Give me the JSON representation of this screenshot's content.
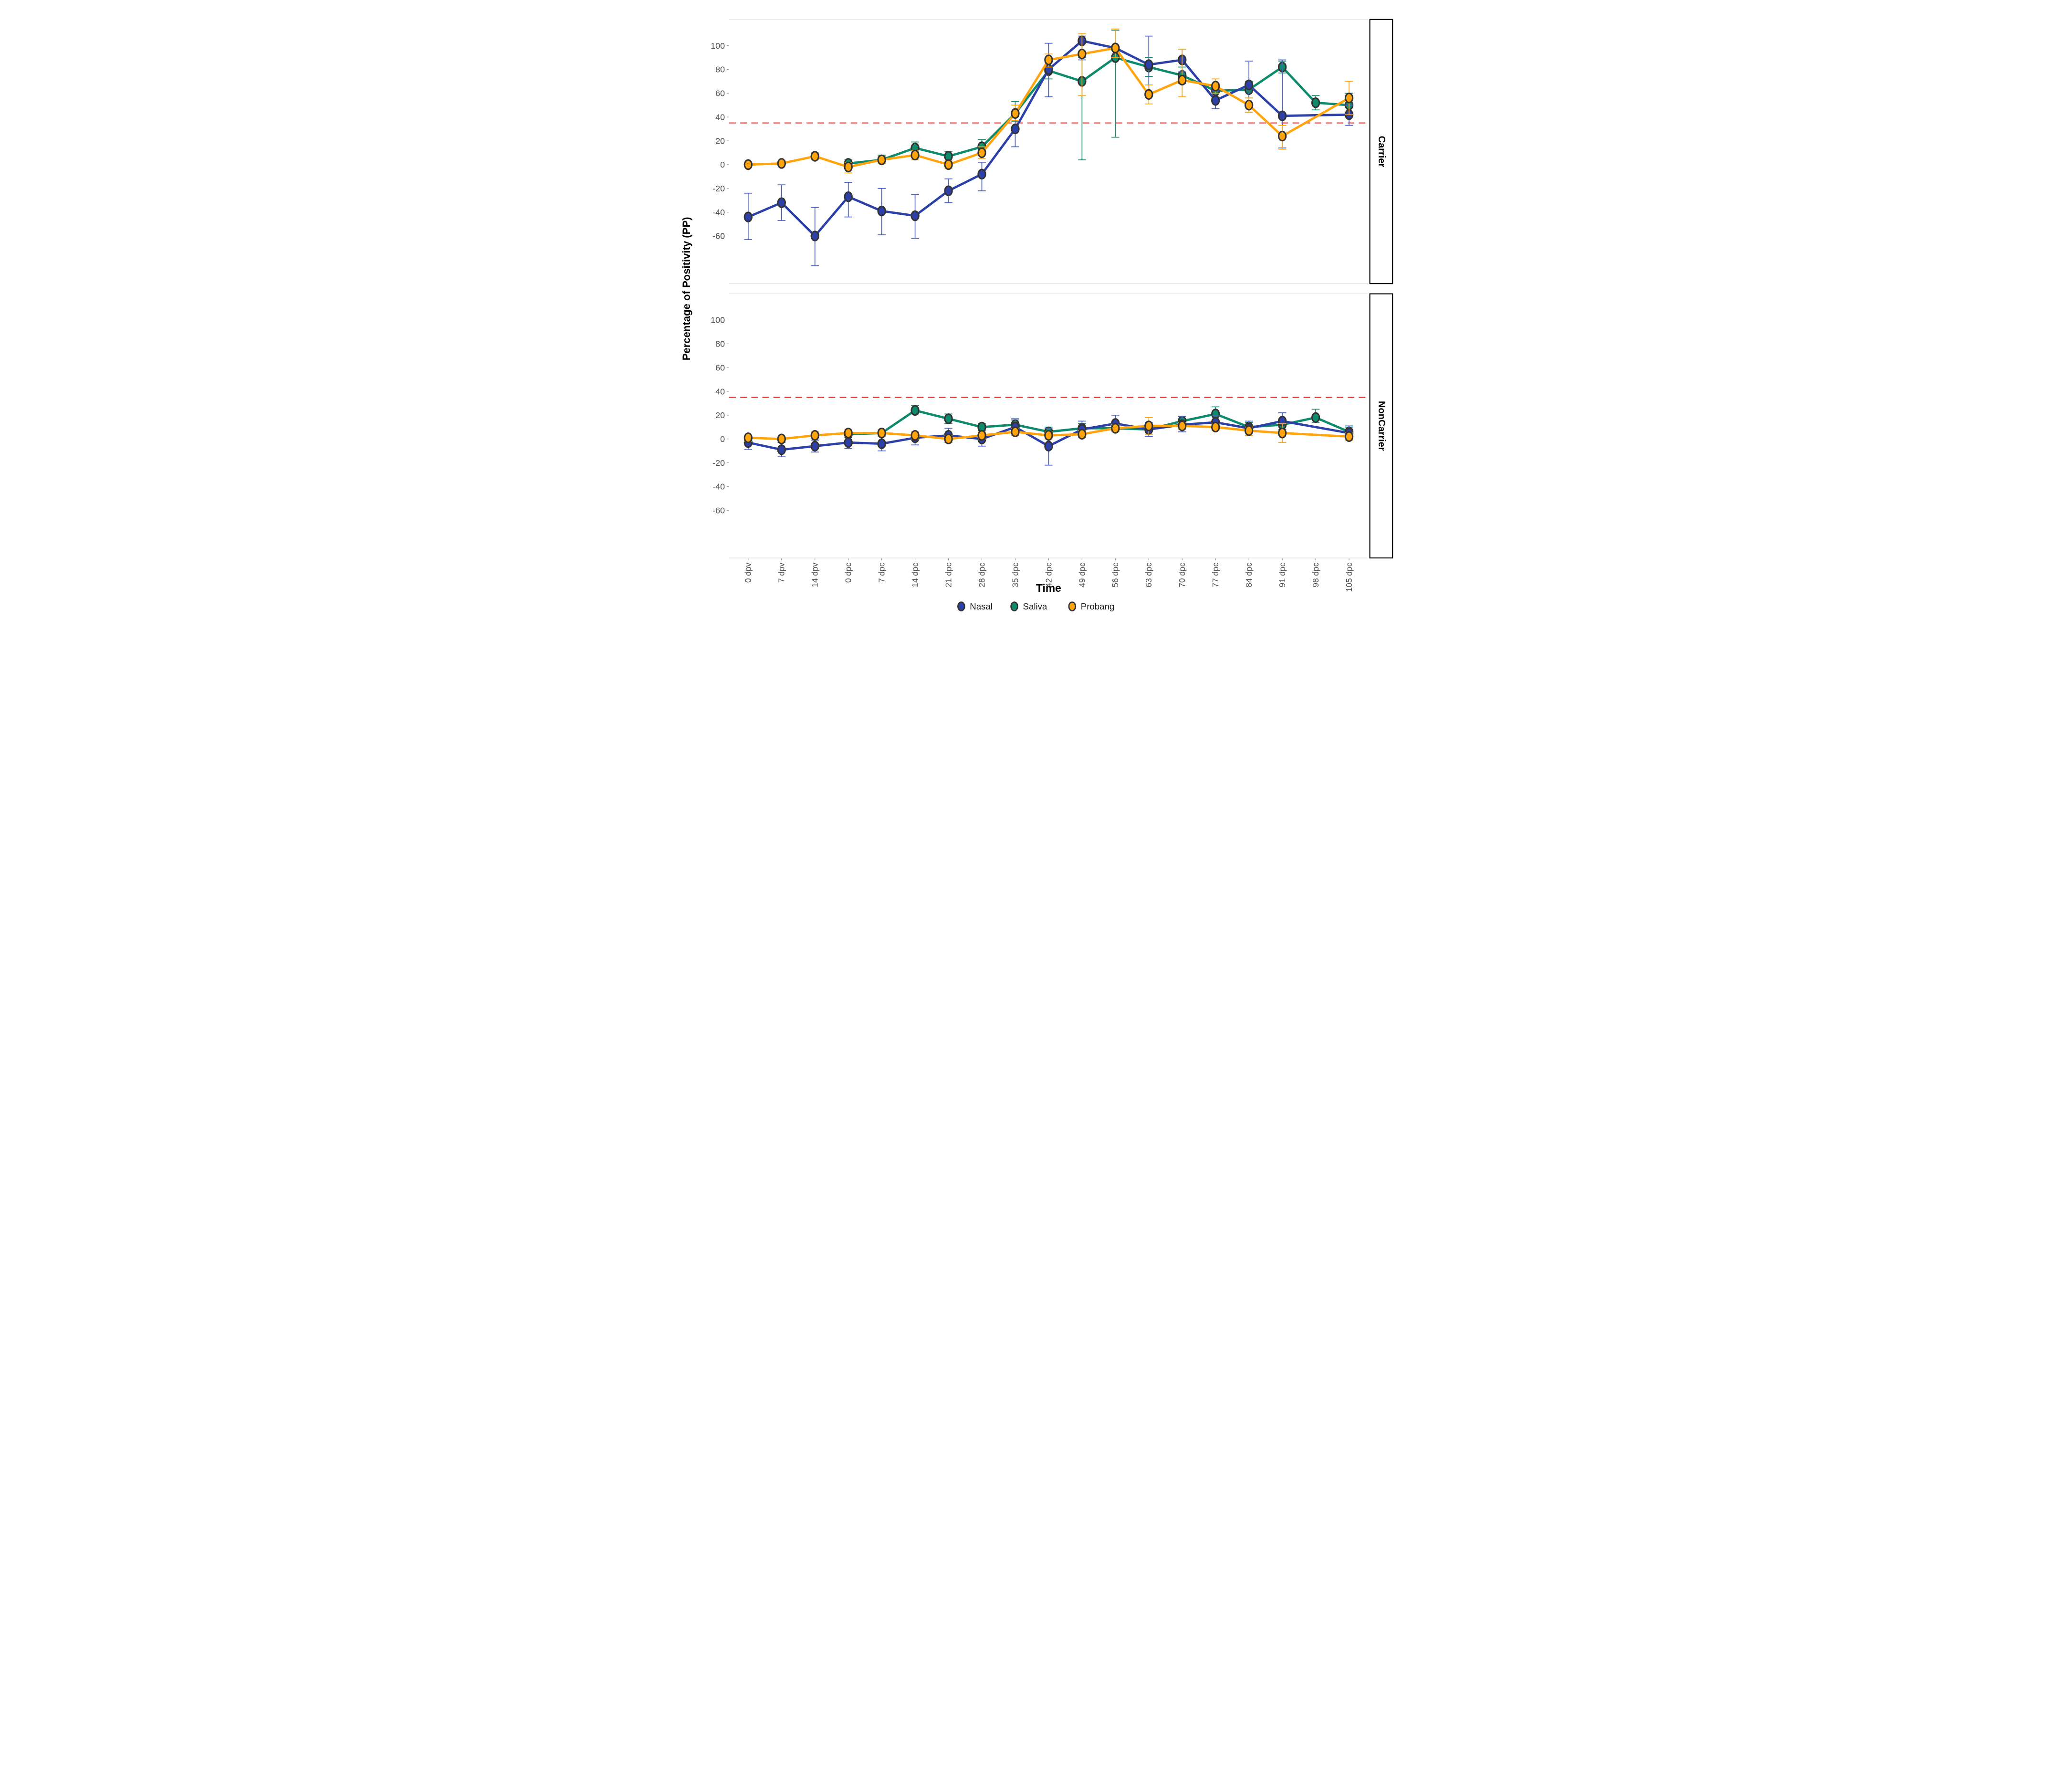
{
  "chart_data": {
    "type": "line",
    "title": "",
    "xlabel": "Time",
    "ylabel": "Percentage of Positivity (PP)",
    "legend_position": "bottom",
    "grid": false,
    "error_bars": true,
    "threshold": 35,
    "threshold_color": "#e02420",
    "ylim": [
      -100,
      122
    ],
    "yticks": [
      100,
      80,
      60,
      40,
      20,
      0,
      -20,
      -40,
      -60
    ],
    "categories": [
      "0 dpv",
      "7 dpv",
      "14 dpv",
      "0 dpc",
      "7 dpc",
      "14 dpc",
      "21 dpc",
      "28 dpc",
      "35 dpc",
      "42 dpc",
      "49 dpc",
      "56 dpc",
      "63 dpc",
      "70 dpc",
      "77 dpc",
      "84 dpc",
      "91 dpc",
      "98 dpc",
      "105 dpc"
    ],
    "draw_order": [
      "Saliva",
      "Nasal",
      "Probang"
    ],
    "legend": [
      {
        "label": "Nasal",
        "color": "#2c40a8"
      },
      {
        "label": "Saliva",
        "color": "#0e8a6d"
      },
      {
        "label": "Probang",
        "color": "#ffa40d"
      }
    ],
    "series_styles": {
      "Nasal": {
        "color": "#2c40a8",
        "err_color": "#4c60c4"
      },
      "Saliva": {
        "color": "#0e8a6d",
        "err_color": "#0e8a6d"
      },
      "Probang": {
        "color": "#ffa40d",
        "err_color": "#ffa40d"
      },
      "marker_stroke": "#333333"
    },
    "facets": [
      {
        "label": "Carrier",
        "series": [
          {
            "name": "Nasal",
            "values": [
              -44,
              -32,
              -60,
              -27,
              -39,
              -43,
              -22,
              -8,
              30,
              80,
              104,
              98,
              84,
              88,
              54,
              67,
              41,
              null,
              42
            ],
            "err": [
              [
                -63,
                -24
              ],
              [
                -47,
                -17
              ],
              [
                -85,
                -36
              ],
              [
                -44,
                -15
              ],
              [
                -59,
                -20
              ],
              [
                -62,
                -25
              ],
              [
                -32,
                -12
              ],
              [
                -22,
                2
              ],
              [
                15,
                45
              ],
              [
                57,
                102
              ],
              [
                88,
                108
              ],
              null,
              [
                57,
                108
              ],
              [
                78,
                97
              ],
              [
                47,
                62
              ],
              [
                52,
                87
              ],
              [
                14,
                88
              ],
              null,
              [
                33,
                50
              ]
            ]
          },
          {
            "name": "Saliva",
            "values": [
              null,
              null,
              null,
              1,
              4,
              14,
              7,
              15,
              43,
              79,
              70,
              90,
              82,
              75,
              62,
              63,
              82,
              52,
              50
            ],
            "err": [
              null,
              null,
              null,
              [
                -2,
                4
              ],
              [
                1,
                8
              ],
              [
                9,
                19
              ],
              [
                3,
                11
              ],
              [
                10,
                21
              ],
              [
                36,
                53
              ],
              [
                72,
                86
              ],
              [
                4,
                90
              ],
              [
                23,
                113
              ],
              [
                74,
                90
              ],
              [
                68,
                82
              ],
              [
                56,
                68
              ],
              [
                56,
                70
              ],
              [
                77,
                87
              ],
              [
                46,
                58
              ],
              [
                40,
                60
              ]
            ]
          },
          {
            "name": "Probang",
            "values": [
              0,
              1,
              7,
              -2,
              4,
              8,
              0,
              10,
              43,
              88,
              93,
              98,
              59,
              71,
              66,
              50,
              24,
              null,
              56
            ],
            "err": [
              [
                -2,
                2
              ],
              [
                -1,
                3
              ],
              [
                4,
                10
              ],
              [
                -7,
                2
              ],
              [
                1,
                7
              ],
              [
                4,
                12
              ],
              [
                -3,
                3
              ],
              [
                5,
                15
              ],
              [
                37,
                50
              ],
              [
                82,
                93
              ],
              [
                58,
                110
              ],
              [
                90,
                114
              ],
              [
                51,
                67
              ],
              [
                57,
                97
              ],
              [
                60,
                72
              ],
              [
                44,
                56
              ],
              [
                13,
                33
              ],
              null,
              [
                42,
                70
              ]
            ]
          }
        ]
      },
      {
        "label": "NonCarrier",
        "series": [
          {
            "name": "Nasal",
            "values": [
              -3,
              -9,
              -6,
              -3,
              -4,
              1,
              3,
              0,
              10,
              -6,
              8,
              13,
              8,
              12,
              14,
              9,
              15,
              null,
              5
            ],
            "err": [
              [
                -9,
                2
              ],
              [
                -15,
                -3
              ],
              [
                -11,
                -1
              ],
              [
                -8,
                2
              ],
              [
                -10,
                2
              ],
              [
                -5,
                6
              ],
              [
                -3,
                9
              ],
              [
                -6,
                5
              ],
              [
                3,
                17
              ],
              [
                -22,
                9
              ],
              [
                1,
                15
              ],
              [
                6,
                20
              ],
              [
                2,
                14
              ],
              [
                6,
                19
              ],
              [
                8,
                20
              ],
              [
                3,
                15
              ],
              [
                8,
                22
              ],
              null,
              [
                -1,
                11
              ]
            ]
          },
          {
            "name": "Saliva",
            "values": [
              null,
              null,
              null,
              4,
              5,
              24,
              17,
              10,
              12,
              6,
              9,
              9,
              8,
              15,
              21,
              10,
              12,
              18,
              6
            ],
            "err": [
              null,
              null,
              null,
              [
                1,
                7
              ],
              [
                2,
                8
              ],
              [
                21,
                28
              ],
              [
                13,
                21
              ],
              [
                7,
                13
              ],
              [
                9,
                16
              ],
              [
                2,
                10
              ],
              [
                5,
                13
              ],
              [
                6,
                12
              ],
              [
                4,
                12
              ],
              [
                11,
                19
              ],
              [
                15,
                27
              ],
              [
                6,
                14
              ],
              [
                8,
                16
              ],
              [
                14,
                25
              ],
              [
                2,
                10
              ]
            ]
          },
          {
            "name": "Probang",
            "values": [
              1,
              0,
              3,
              5,
              5,
              3,
              0,
              3,
              6,
              3,
              4,
              9,
              11,
              11,
              10,
              7,
              5,
              null,
              2
            ],
            "err": [
              [
                -2,
                3
              ],
              [
                -2,
                2
              ],
              [
                1,
                6
              ],
              [
                2,
                8
              ],
              [
                2,
                8
              ],
              [
                0,
                6
              ],
              [
                -3,
                3
              ],
              [
                0,
                6
              ],
              [
                3,
                9
              ],
              [
                0,
                6
              ],
              [
                1,
                7
              ],
              [
                6,
                12
              ],
              [
                4,
                18
              ],
              [
                8,
                14
              ],
              [
                7,
                13
              ],
              [
                3,
                10
              ],
              [
                -3,
                13
              ],
              null,
              [
                -1,
                5
              ]
            ]
          }
        ]
      }
    ],
    "axis_text_color": "#4d4d4d",
    "axis_line_color": "#dedede",
    "strip_border_color": "#000000",
    "strip_fill": "#ffffff",
    "strip_text_color": "#000000"
  }
}
